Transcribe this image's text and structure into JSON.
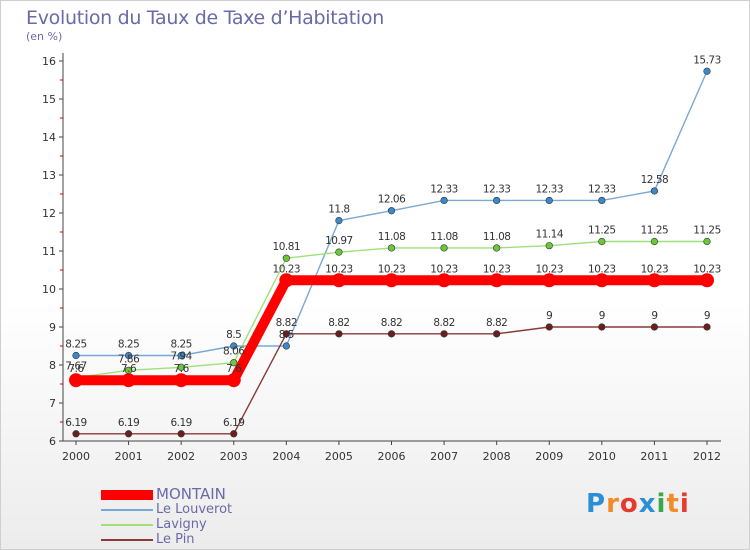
{
  "header": {
    "title": "Evolution du Taux de Taxe d’Habitation",
    "subtitle": "(en %)"
  },
  "brand": {
    "text": "Proxiti"
  },
  "chart_data": {
    "type": "line",
    "title": "Evolution du Taux de Taxe d’Habitation",
    "subtitle": "(en %)",
    "xlabel": "",
    "ylabel": "",
    "x": [
      "2000",
      "2001",
      "2002",
      "2003",
      "2004",
      "2005",
      "2006",
      "2007",
      "2008",
      "2009",
      "2010",
      "2011",
      "2012"
    ],
    "ylim": [
      6,
      16
    ],
    "yticks": [
      6,
      7,
      8,
      9,
      10,
      11,
      12,
      13,
      14,
      15,
      16
    ],
    "grid": false,
    "legend_position": "bottom-left",
    "series": [
      {
        "name": "MONTAIN",
        "color": "#ff0000",
        "emphasis": true,
        "values": [
          7.6,
          7.6,
          7.6,
          7.6,
          10.23,
          10.23,
          10.23,
          10.23,
          10.23,
          10.23,
          10.23,
          10.23,
          10.23
        ],
        "labels": [
          "7.6",
          "7.6",
          "7.6",
          "7.6",
          "10.23",
          "10.23",
          "10.23",
          "10.23",
          "10.23",
          "10.23",
          "10.23",
          "10.23",
          "10.23"
        ]
      },
      {
        "name": "Le Louverot",
        "color": "#7aa8d6",
        "marker": "#3a8acb",
        "values": [
          8.25,
          8.25,
          8.25,
          8.5,
          8.5,
          11.8,
          12.06,
          12.33,
          12.33,
          12.33,
          12.33,
          12.58,
          15.73
        ],
        "labels": [
          "8.25",
          "8.25",
          "8.25",
          "8.5",
          "8.5",
          "11.8",
          "12.06",
          "12.33",
          "12.33",
          "12.33",
          "12.33",
          "12.58",
          "15.73"
        ]
      },
      {
        "name": "Lavigny",
        "color": "#9fe07a",
        "marker": "#6cc83a",
        "values": [
          7.67,
          7.86,
          7.94,
          8.06,
          10.81,
          10.97,
          11.08,
          11.08,
          11.08,
          11.14,
          11.25,
          11.25,
          11.25
        ],
        "labels": [
          "7.67",
          "7.86",
          "7.94",
          "8.06",
          "10.81",
          "10.97",
          "11.08",
          "11.08",
          "11.08",
          "11.14",
          "11.25",
          "11.25",
          "11.25"
        ]
      },
      {
        "name": "Le Pin",
        "color": "#8a3a3a",
        "marker": "#6a1f1f",
        "values": [
          6.19,
          6.19,
          6.19,
          6.19,
          8.82,
          8.82,
          8.82,
          8.82,
          8.82,
          9,
          9,
          9,
          9
        ],
        "labels": [
          "6.19",
          "6.19",
          "6.19",
          "6.19",
          "8.82",
          "8.82",
          "8.82",
          "8.82",
          "8.82",
          "9",
          "9",
          "9",
          "9"
        ]
      }
    ]
  }
}
